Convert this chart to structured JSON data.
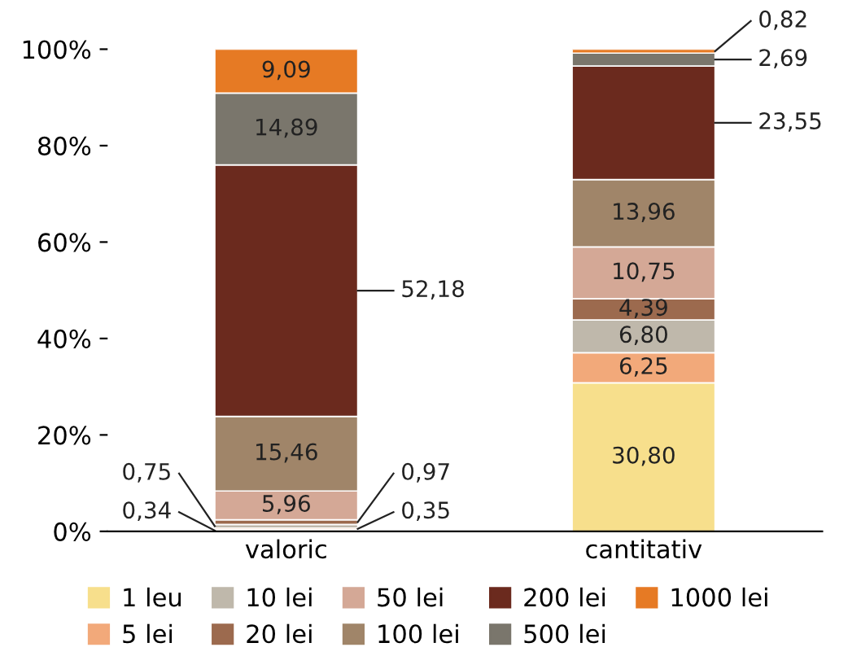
{
  "chart_data": {
    "type": "bar",
    "stacked": true,
    "categories": [
      "valoric",
      "cantitativ"
    ],
    "series": [
      {
        "name": "1 leu",
        "color": "#f7df8c",
        "values": [
          0.34,
          30.8
        ],
        "value_labels": [
          "0,34",
          "30,80"
        ]
      },
      {
        "name": "5 lei",
        "color": "#f2a97a",
        "values": [
          0.35,
          6.25
        ],
        "value_labels": [
          "0,35",
          "6,25"
        ]
      },
      {
        "name": "10 lei",
        "color": "#bfb8ab",
        "values": [
          0.75,
          6.8
        ],
        "value_labels": [
          "0,75",
          "6,80"
        ]
      },
      {
        "name": "20 lei",
        "color": "#9c6a4e",
        "values": [
          0.97,
          4.39
        ],
        "value_labels": [
          "0,97",
          "4,39"
        ]
      },
      {
        "name": "50 lei",
        "color": "#d4a896",
        "values": [
          5.96,
          10.75
        ],
        "value_labels": [
          "5,96",
          "10,75"
        ]
      },
      {
        "name": "100 lei",
        "color": "#a08569",
        "values": [
          15.46,
          13.96
        ],
        "value_labels": [
          "15,46",
          "13,96"
        ]
      },
      {
        "name": "200 lei",
        "color": "#6b2a1e",
        "values": [
          52.18,
          23.55
        ],
        "value_labels": [
          "52,18",
          "23,55"
        ]
      },
      {
        "name": "500 lei",
        "color": "#7a766c",
        "values": [
          14.89,
          2.69
        ],
        "value_labels": [
          "14,89",
          "2,69"
        ]
      },
      {
        "name": "1000 lei",
        "color": "#e67a24",
        "values": [
          9.09,
          0.82
        ],
        "value_labels": [
          "9,09",
          "0,82"
        ]
      }
    ],
    "ylim": [
      0,
      100
    ],
    "yticks": [
      {
        "value": 0,
        "label": "0%"
      },
      {
        "value": 20,
        "label": "20%"
      },
      {
        "value": 40,
        "label": "40%"
      },
      {
        "value": 60,
        "label": "60%"
      },
      {
        "value": 80,
        "label": "80%"
      },
      {
        "value": 100,
        "label": "100%"
      }
    ],
    "grid": false,
    "legend": "bottom"
  }
}
